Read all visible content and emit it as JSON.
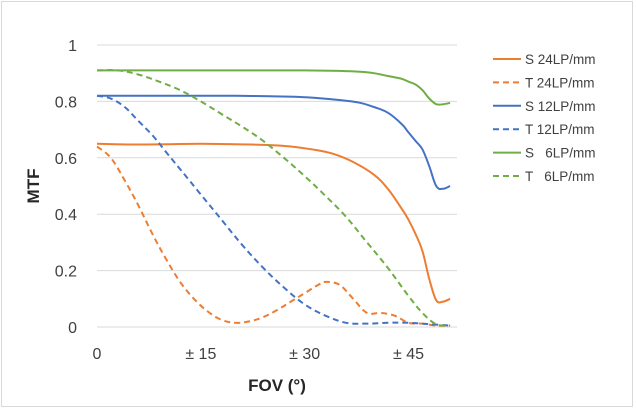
{
  "chart_data": {
    "type": "line",
    "xlabel": "FOV (°)",
    "ylabel": "MTF",
    "xlim": [
      0,
      52
    ],
    "ylim": [
      0,
      1
    ],
    "x_ticks": [
      {
        "value": 0,
        "label": "0"
      },
      {
        "value": 15,
        "label": "± 15"
      },
      {
        "value": 30,
        "label": "± 30"
      },
      {
        "value": 45,
        "label": "± 45"
      }
    ],
    "y_ticks": [
      {
        "value": 0,
        "label": "0"
      },
      {
        "value": 0.2,
        "label": "0.2"
      },
      {
        "value": 0.4,
        "label": "0.4"
      },
      {
        "value": 0.6,
        "label": "0.6"
      },
      {
        "value": 0.8,
        "label": "0.8"
      },
      {
        "value": 1,
        "label": "1"
      }
    ],
    "grid": {
      "horizontal": true,
      "vertical": false
    },
    "legend_position": "right",
    "series": [
      {
        "name": "S 24LP/mm",
        "color": "#ed7d31",
        "dash": "solid",
        "x": [
          0,
          5,
          10,
          15,
          20,
          25,
          28,
          31,
          34,
          37,
          40,
          42,
          44,
          45,
          46,
          47,
          48,
          49,
          50,
          51
        ],
        "y": [
          0.65,
          0.647,
          0.648,
          0.65,
          0.648,
          0.645,
          0.64,
          0.63,
          0.615,
          0.585,
          0.54,
          0.49,
          0.42,
          0.38,
          0.33,
          0.27,
          0.17,
          0.095,
          0.09,
          0.1
        ]
      },
      {
        "name": "T 24LP/mm",
        "color": "#ed7d31",
        "dash": "dashed",
        "x": [
          0,
          2,
          4,
          6,
          8,
          10,
          12,
          14,
          16,
          18,
          20,
          22,
          24,
          26,
          28,
          30,
          32,
          33,
          35,
          37,
          39,
          41,
          43,
          45,
          47,
          49,
          51
        ],
        "y": [
          0.64,
          0.6,
          0.52,
          0.43,
          0.33,
          0.24,
          0.16,
          0.1,
          0.055,
          0.025,
          0.015,
          0.02,
          0.035,
          0.06,
          0.09,
          0.12,
          0.15,
          0.16,
          0.15,
          0.1,
          0.05,
          0.05,
          0.04,
          0.015,
          0.012,
          0.005,
          0.005
        ]
      },
      {
        "name": "S 12LP/mm",
        "color": "#4472c4",
        "dash": "solid",
        "x": [
          0,
          5,
          10,
          15,
          20,
          25,
          30,
          35,
          38,
          40,
          42,
          44,
          45,
          46,
          47,
          48,
          49,
          50,
          51
        ],
        "y": [
          0.82,
          0.82,
          0.82,
          0.82,
          0.82,
          0.818,
          0.815,
          0.805,
          0.795,
          0.78,
          0.76,
          0.72,
          0.69,
          0.66,
          0.63,
          0.57,
          0.5,
          0.49,
          0.5
        ]
      },
      {
        "name": "T 12LP/mm",
        "color": "#4472c4",
        "dash": "dashed",
        "x": [
          0,
          2,
          4,
          6,
          8,
          10,
          12,
          15,
          18,
          21,
          24,
          27,
          30,
          33,
          36,
          39,
          42,
          45,
          48,
          51
        ],
        "y": [
          0.82,
          0.81,
          0.78,
          0.73,
          0.68,
          0.62,
          0.56,
          0.47,
          0.38,
          0.29,
          0.21,
          0.14,
          0.08,
          0.04,
          0.015,
          0.012,
          0.015,
          0.015,
          0.01,
          0.005
        ]
      },
      {
        "name": "S   6LP/mm",
        "color": "#70ad47",
        "dash": "solid",
        "x": [
          0,
          5,
          10,
          15,
          20,
          25,
          30,
          35,
          38,
          40,
          42,
          44,
          45,
          46,
          47,
          48,
          49,
          50,
          51
        ],
        "y": [
          0.91,
          0.91,
          0.91,
          0.91,
          0.91,
          0.91,
          0.91,
          0.908,
          0.905,
          0.9,
          0.89,
          0.88,
          0.87,
          0.86,
          0.84,
          0.81,
          0.79,
          0.79,
          0.795
        ]
      },
      {
        "name": "T   6LP/mm",
        "color": "#70ad47",
        "dash": "dashed",
        "x": [
          0,
          3,
          6,
          9,
          12,
          15,
          18,
          21,
          24,
          27,
          30,
          33,
          36,
          39,
          42,
          45,
          47,
          49,
          51
        ],
        "y": [
          0.91,
          0.91,
          0.895,
          0.87,
          0.84,
          0.8,
          0.755,
          0.71,
          0.66,
          0.6,
          0.535,
          0.465,
          0.39,
          0.3,
          0.21,
          0.11,
          0.05,
          0.01,
          0.005
        ]
      }
    ]
  }
}
